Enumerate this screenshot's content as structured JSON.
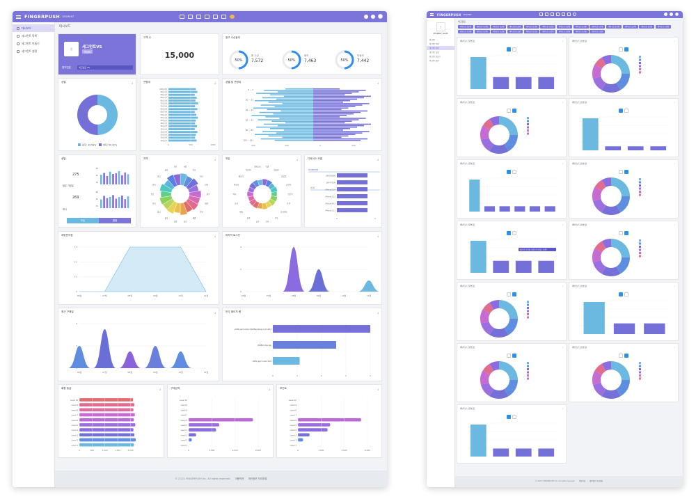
{
  "colors": {
    "brand": "#7b74d9",
    "blue": "#6bb8e0",
    "purple": "#7470d8",
    "violet": "#9c6fe0",
    "magenta": "#c66bd2",
    "pink": "#e06c8f",
    "green": "#8cd05e",
    "yellow": "#e7d357",
    "orange": "#e9a24d",
    "red": "#e06c6c",
    "teal": "#4cc8c0"
  },
  "window_a": {
    "brand": "FINGERPUSH",
    "brand_sub": "SEGMENT",
    "sidebar": [
      {
        "label": "대시보드"
      },
      {
        "label": "세그먼트 목록"
      },
      {
        "label": "세그먼트 만들기"
      },
      {
        "label": "세그먼트 설정"
      }
    ],
    "breadcrumb": "대시보드",
    "profile": {
      "name": "세그먼트VS",
      "badge": "활성화",
      "id_label": "앱키번호",
      "id_value": "세그먼트 VS"
    },
    "customers": {
      "title": "고객 수",
      "value": "15,000"
    },
    "ad_consent": {
      "title": "광고 수신동의",
      "items": [
        {
          "pct": "50%",
          "label": "총 수신",
          "value": "7,572"
        },
        {
          "pct": "50%",
          "label": "동의",
          "value": "7,463"
        },
        {
          "pct": "50%",
          "label": "미동의",
          "value": "7,442"
        }
      ]
    },
    "gender": {
      "title": "성별",
      "legend": [
        "남자: 49.58%",
        "여자: 50.42%"
      ],
      "values": [
        49.58,
        50.42
      ]
    },
    "age": {
      "title": "연령대",
      "ticks": [
        "0",
        "500",
        "1000"
      ],
      "labels": [
        "100대 이상",
        "90대 후반",
        "90대 초반",
        "80대 후반",
        "80대 초반",
        "70대 후반",
        "70대 초반",
        "60대 후반",
        "60대 초반",
        "50대 후반",
        "50대 초반",
        "40대 후반",
        "40대 초반",
        "30대 후반",
        "30대 초반",
        "20대 후반",
        "20대 초반",
        "10대 후반",
        "10대 초반"
      ],
      "values": [
        720,
        760,
        690,
        740,
        710,
        780,
        700,
        760,
        690,
        730,
        770,
        720,
        700,
        750,
        690,
        760,
        720,
        700,
        740
      ]
    },
    "gender_age": {
      "title": "성별 및 연령대",
      "y_labels": [
        "0 ~ 3",
        "20 ~ 23",
        "40 ~ 43",
        "60 ~ 63",
        "80 ~ 83",
        "100 ~ 103"
      ],
      "x_ticks": [
        "400",
        "200",
        "0",
        "200",
        "400"
      ]
    },
    "birthday": {
      "title": "생일",
      "top_value": "275",
      "top_axis": [
        "60",
        "40",
        "30"
      ],
      "mid_label": "점은 기념일",
      "bottom_value": "269",
      "bottom_label": "회사",
      "bottom_axis": [
        "60",
        "40",
        "30"
      ],
      "tabs": [
        "오늘",
        "월별"
      ],
      "top_bars": [
        38,
        45,
        33,
        50,
        41,
        44,
        52,
        36,
        47,
        40
      ],
      "bottom_bars": [
        34,
        48,
        39,
        44,
        51,
        37,
        43,
        49,
        35,
        46
      ]
    },
    "region": {
      "title": "지역",
      "labels": [
        "서울",
        "부산",
        "대구",
        "인천",
        "광주",
        "대전",
        "울산",
        "세종",
        "경기",
        "강원",
        "충북",
        "충남",
        "전북",
        "전남",
        "경북",
        "경남",
        "제주",
        "기타"
      ]
    },
    "carrier": {
      "title": "직업",
      "labels": [
        "학생",
        "회사원",
        "자영업",
        "공무원",
        "전문직",
        "주부",
        "프리랜서",
        "무직",
        "기타",
        "군인",
        "농업",
        "어업",
        "교사",
        "의사",
        "변호사",
        "예술가",
        "연구원",
        "엔지니어"
      ]
    },
    "device": {
      "title": "디바이스 모델",
      "groups": [
        "Android",
        "iOS"
      ],
      "labels": [
        "SM-G928N",
        "SM-F721N",
        "iPhone15,4",
        "iPhone15,2",
        "iPhone14,2",
        "iPhone13,1"
      ],
      "values": [
        1.6,
        1.6,
        1.6,
        1.6,
        1.6,
        1.6
      ],
      "ticks": [
        "0",
        "2"
      ]
    },
    "revisit": {
      "title": "재방문지점",
      "y_ticks": [
        "7.5",
        "5.0",
        "2.5",
        "0"
      ],
      "x_labels": [
        "06월",
        "07월",
        "08월",
        "09월",
        "10월",
        "11월"
      ],
      "values": [
        0,
        0,
        7.5,
        7.5,
        7.5,
        0
      ]
    },
    "last_log": {
      "title": "마지막 로그인",
      "y_ticks": [
        "4",
        "2",
        "0"
      ],
      "x_labels": [
        "06월",
        "07월",
        "08월",
        "09월",
        "10월",
        "11월"
      ],
      "values": [
        0,
        0,
        4,
        2,
        0,
        1
      ]
    },
    "recent_purchase": {
      "title": "최근 구매일",
      "y_ticks": [
        "4",
        "2",
        "0"
      ],
      "x_labels": [
        "06월",
        "07월",
        "08월",
        "09월",
        "10월",
        "11월"
      ],
      "values": [
        2,
        3.5,
        1.5,
        2,
        1.5,
        0
      ]
    },
    "top_pages": {
      "title": "인식 페이지 랭",
      "labels": [
        "/AB1.jsp?code=1048&category=1443",
        "/ABB/index.jsp",
        "/AB1.jsp?code=150"
      ],
      "values": [
        4,
        2.6,
        1.1
      ],
      "ticks": [
        "0",
        "1",
        "2",
        "3",
        "4"
      ]
    },
    "member_level": {
      "title": "회원 등급",
      "labels": [
        "Level 10",
        "Level 9",
        "Level 8",
        "Level 7",
        "Level 6",
        "Level 5",
        "Level 4",
        "Level 3",
        "Level 2",
        "Level 1"
      ],
      "values": [
        1180,
        1210,
        1190,
        1220,
        1200,
        1230,
        1190,
        1210,
        1240,
        1200
      ],
      "ticks": [
        "0",
        "500",
        "1,000",
        "1,500",
        "2,000"
      ]
    },
    "purchase_amount": {
      "title": "구매금액",
      "labels": [
        "Level 10",
        "Level 9",
        "Level 8",
        "Level 7",
        "Level 6",
        "Level 5",
        "Level 4",
        "Level 3",
        "Level 2",
        "Level 1"
      ],
      "values": [
        0,
        0,
        0,
        0,
        6100,
        2900,
        2600,
        700,
        300,
        0
      ],
      "ticks": [
        "0",
        "2,000",
        "4,000",
        "6,000"
      ]
    },
    "points": {
      "title": "포인트",
      "labels": [
        "Level 10",
        "Level 9",
        "Level 8",
        "Level 7",
        "Level 6",
        "Level 5",
        "Level 4",
        "Level 3",
        "Level 2",
        "Level 1"
      ],
      "values": [
        0,
        0,
        0,
        0,
        4900,
        2500,
        2300,
        900,
        400,
        0
      ],
      "ticks": [
        "0",
        "2,000",
        "4,000",
        "6,000"
      ]
    },
    "footer": {
      "copy": "© 2023. FINGERPUSH Inc. All rights reserved.",
      "links": [
        "이용약관",
        "개인정보 처리방침"
      ]
    }
  },
  "window_b": {
    "brand": "FINGERPUSH",
    "brand_sub": "SEGMENT",
    "sidebar": [
      {
        "label": "세그먼트"
      },
      {
        "label": "세그먼트 목록"
      },
      {
        "label": "세그먼트 상세"
      },
      {
        "label": "세그먼트 설정"
      },
      {
        "label": "세그먼트 만들기"
      },
      {
        "label": "세그먼트 설정"
      }
    ],
    "sidebar_name": "SEGMENT_NAME",
    "crumb": "세그먼트",
    "chips": [
      "세부조건 조건명",
      "세부조건 조건명",
      "세부조건 조건명",
      "세부조건 조건명",
      "세부조건 조건명",
      "세부조건 조건명",
      "세부조건 조건명",
      "세부조건 조건명",
      "세부조건 조건명",
      "세부조건 조건명",
      "세부조건 조건명",
      "세부조건 조건명",
      "세부조건 조건명",
      "세부조건 조건명",
      "세부조건 조건명",
      "세부조건 조건명",
      "세부조건 조건명",
      "세부조건 조건명",
      "세부조건 조건명",
      "세부조건 조건명",
      "세부조건 조건명",
      "세부조건 조건명"
    ],
    "card_title": "세부조건 조건명 값",
    "tooltip": "세부조건 조건명: 세부조건 조건값: 1,000",
    "footer": {
      "copy": "© 2023. FINGERPUSH Inc. All rights reserved.",
      "links": [
        "이용약관",
        "개인정보 처리방침"
      ]
    }
  }
}
